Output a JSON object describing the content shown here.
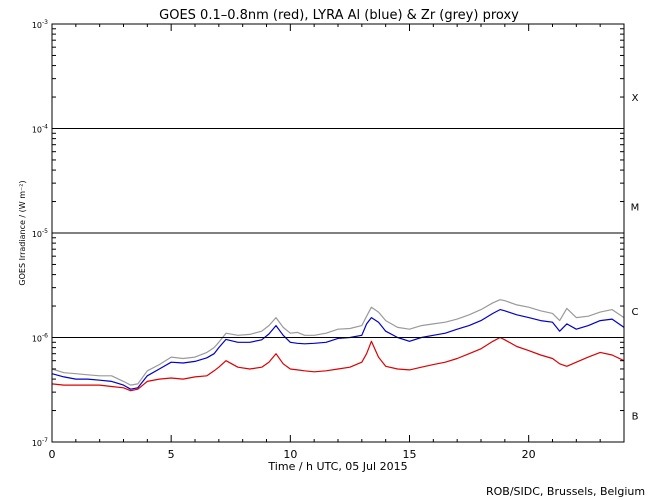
{
  "chart_data": {
    "type": "line",
    "title": "GOES 0.1–0.8nm (red), LYRA Al (blue) & Zr (grey) proxy",
    "xlabel": "Time / h UTC, 05 Jul 2015",
    "ylabel": "GOES Irradiance / (W m⁻²)",
    "xlim": [
      0,
      24
    ],
    "ylim": [
      1e-07,
      0.001
    ],
    "y_scale": "log",
    "x_ticks": [
      0,
      5,
      10,
      15,
      20
    ],
    "x_tick_labels": [
      "0",
      "5",
      "10",
      "15",
      "20"
    ],
    "y_ticks": [
      1e-07,
      1e-06,
      1e-05,
      0.0001,
      0.001
    ],
    "y_tick_labels": [
      {
        "base": "10",
        "exp": "-7"
      },
      {
        "base": "10",
        "exp": "-6"
      },
      {
        "base": "10",
        "exp": "-5"
      },
      {
        "base": "10",
        "exp": "-4"
      },
      {
        "base": "10",
        "exp": "-3"
      }
    ],
    "flare_classes": [
      {
        "label": "X",
        "y": 0.0002
      },
      {
        "label": "M",
        "y": 1.8e-05
      },
      {
        "label": "C",
        "y": 1.8e-06
      },
      {
        "label": "B",
        "y": 1.8e-07
      }
    ],
    "threshold_lines": [
      1e-06,
      1e-05,
      0.0001
    ],
    "grid": false,
    "series": [
      {
        "color": "#9a9a9a",
        "x": [
          0,
          0.5,
          1,
          1.5,
          2,
          2.5,
          3,
          3.3,
          3.6,
          4,
          4.5,
          5,
          5.5,
          6,
          6.5,
          6.8,
          7,
          7.3,
          7.8,
          8.3,
          8.8,
          9.1,
          9.4,
          9.7,
          10,
          10.3,
          10.6,
          11,
          11.5,
          12,
          12.5,
          13,
          13.2,
          13.4,
          13.7,
          14,
          14.5,
          15,
          15.5,
          16,
          16.5,
          17,
          17.5,
          18,
          18.5,
          18.8,
          19,
          19.5,
          20,
          20.5,
          21,
          21.3,
          21.6,
          22,
          22.5,
          23,
          23.5,
          24
        ],
        "y": [
          5e-07,
          4.6e-07,
          4.5e-07,
          4.4e-07,
          4.3e-07,
          4.3e-07,
          3.8e-07,
          3.5e-07,
          3.6e-07,
          4.8e-07,
          5.5e-07,
          6.5e-07,
          6.3e-07,
          6.5e-07,
          7.2e-07,
          8e-07,
          9e-07,
          1.1e-06,
          1.05e-06,
          1.07e-06,
          1.15e-06,
          1.3e-06,
          1.55e-06,
          1.25e-06,
          1.1e-06,
          1.12e-06,
          1.05e-06,
          1.05e-06,
          1.1e-06,
          1.2e-06,
          1.22e-06,
          1.3e-06,
          1.6e-06,
          1.95e-06,
          1.75e-06,
          1.45e-06,
          1.25e-06,
          1.2e-06,
          1.3e-06,
          1.35e-06,
          1.4e-06,
          1.5e-06,
          1.65e-06,
          1.85e-06,
          2.15e-06,
          2.3e-06,
          2.25e-06,
          2.05e-06,
          1.95e-06,
          1.8e-06,
          1.7e-06,
          1.45e-06,
          1.9e-06,
          1.55e-06,
          1.6e-06,
          1.75e-06,
          1.85e-06,
          1.55e-06
        ]
      },
      {
        "color": "#0000cc",
        "x": [
          0,
          0.5,
          1,
          1.5,
          2,
          2.5,
          3,
          3.3,
          3.6,
          4,
          4.5,
          5,
          5.5,
          6,
          6.5,
          6.8,
          7,
          7.3,
          7.8,
          8.3,
          8.8,
          9.1,
          9.4,
          9.7,
          10,
          10.3,
          10.6,
          11,
          11.5,
          12,
          12.5,
          13,
          13.2,
          13.4,
          13.7,
          14,
          14.5,
          15,
          15.5,
          16,
          16.5,
          17,
          17.5,
          18,
          18.5,
          18.8,
          19,
          19.5,
          20,
          20.5,
          21,
          21.3,
          21.6,
          22,
          22.5,
          23,
          23.5,
          24
        ],
        "y": [
          4.5e-07,
          4.2e-07,
          4e-07,
          4e-07,
          3.9e-07,
          3.8e-07,
          3.5e-07,
          3.2e-07,
          3.3e-07,
          4.3e-07,
          5e-07,
          5.8e-07,
          5.7e-07,
          5.9e-07,
          6.4e-07,
          7e-07,
          8e-07,
          9.6e-07,
          9e-07,
          9e-07,
          9.5e-07,
          1.08e-06,
          1.3e-06,
          1.05e-06,
          9e-07,
          8.8e-07,
          8.7e-07,
          8.8e-07,
          9e-07,
          9.8e-07,
          1e-06,
          1.05e-06,
          1.35e-06,
          1.55e-06,
          1.4e-06,
          1.15e-06,
          1e-06,
          9.2e-07,
          1e-06,
          1.05e-06,
          1.1e-06,
          1.2e-06,
          1.3e-06,
          1.45e-06,
          1.7e-06,
          1.85e-06,
          1.8e-06,
          1.65e-06,
          1.55e-06,
          1.45e-06,
          1.4e-06,
          1.15e-06,
          1.35e-06,
          1.2e-06,
          1.3e-06,
          1.45e-06,
          1.5e-06,
          1.25e-06
        ]
      },
      {
        "color": "#dd0000",
        "x": [
          0,
          0.5,
          1,
          1.5,
          2,
          2.5,
          3,
          3.3,
          3.6,
          4,
          4.5,
          5,
          5.5,
          6,
          6.5,
          6.8,
          7,
          7.3,
          7.8,
          8.3,
          8.8,
          9.1,
          9.4,
          9.7,
          10,
          10.3,
          10.6,
          11,
          11.5,
          12,
          12.5,
          13,
          13.2,
          13.4,
          13.7,
          14,
          14.5,
          15,
          15.5,
          16,
          16.5,
          17,
          17.5,
          18,
          18.5,
          18.8,
          19,
          19.5,
          20,
          20.5,
          21,
          21.3,
          21.6,
          22,
          22.5,
          23,
          23.5,
          24
        ],
        "y": [
          3.6e-07,
          3.5e-07,
          3.5e-07,
          3.5e-07,
          3.5e-07,
          3.4e-07,
          3.3e-07,
          3.1e-07,
          3.2e-07,
          3.8e-07,
          4e-07,
          4.1e-07,
          4e-07,
          4.2e-07,
          4.3e-07,
          4.8e-07,
          5.2e-07,
          6e-07,
          5.2e-07,
          5e-07,
          5.2e-07,
          5.8e-07,
          7e-07,
          5.6e-07,
          5e-07,
          4.9e-07,
          4.8e-07,
          4.7e-07,
          4.8e-07,
          5e-07,
          5.2e-07,
          5.8e-07,
          7e-07,
          9.2e-07,
          6.5e-07,
          5.3e-07,
          5e-07,
          4.9e-07,
          5.2e-07,
          5.5e-07,
          5.8e-07,
          6.3e-07,
          7e-07,
          7.8e-07,
          9.2e-07,
          1e-06,
          9.5e-07,
          8.2e-07,
          7.5e-07,
          6.8e-07,
          6.3e-07,
          5.6e-07,
          5.3e-07,
          5.8e-07,
          6.5e-07,
          7.2e-07,
          6.8e-07,
          6e-07
        ]
      }
    ]
  },
  "credit": "ROB/SIDC, Brussels, Belgium"
}
